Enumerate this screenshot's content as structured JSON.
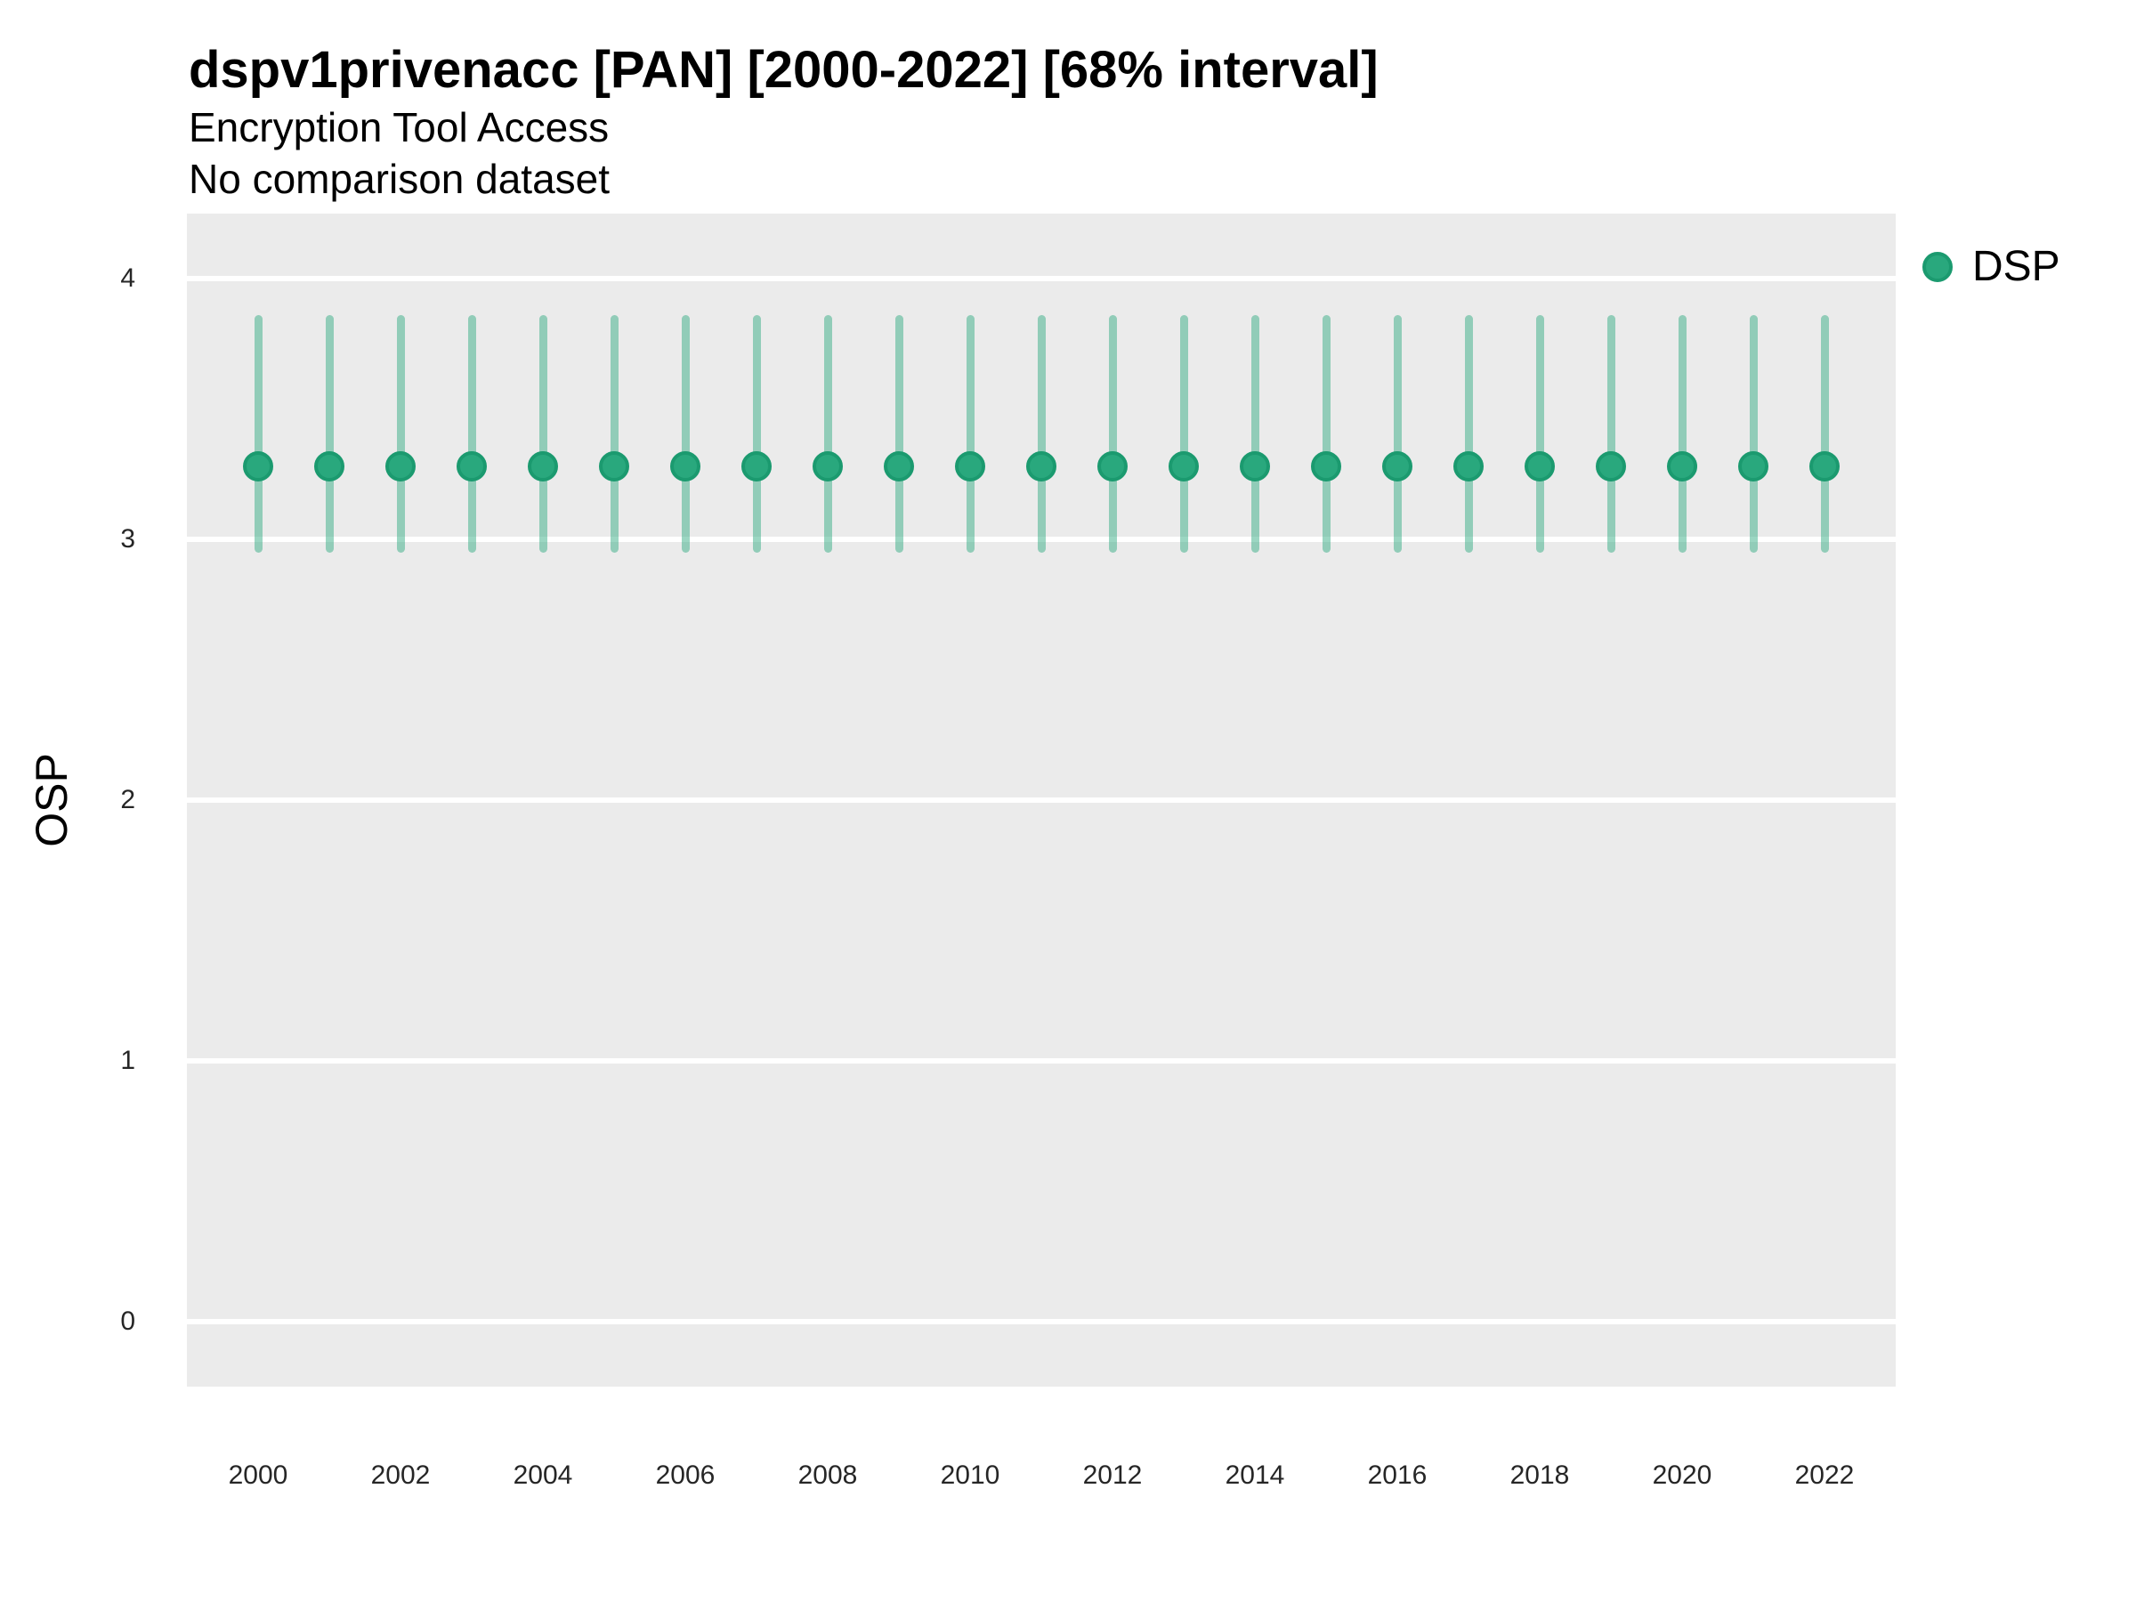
{
  "chart_data": {
    "type": "pointrange-scatter",
    "title": "dspv1privenacc [PAN] [2000-2022] [68% interval]",
    "subtitle": "Encryption Tool Access",
    "comparison_note": "No comparison dataset",
    "ylabel": "OSP",
    "xlabel": "",
    "xlim": [
      1999,
      2023
    ],
    "ylim": [
      -0.25,
      4.25
    ],
    "yticks": [
      0,
      1,
      2,
      3,
      4
    ],
    "xticks": [
      2000,
      2002,
      2004,
      2006,
      2008,
      2010,
      2012,
      2014,
      2016,
      2018,
      2020,
      2022
    ],
    "grid": "horizontal-major-only",
    "panel_bg": "#ebebeb",
    "gridline_color": "#ffffff",
    "legend": {
      "position": "top-right",
      "entries": [
        {
          "label": "DSP",
          "color": "#29a87d",
          "stroke_color": "#1b9a6f"
        }
      ]
    },
    "series": [
      {
        "name": "DSP",
        "point_color": "#29a87d",
        "point_stroke_color": "#1b9a6f",
        "interval_color": "rgba(45,170,127,0.48)",
        "points": [
          {
            "x": 2000,
            "y": 3.28,
            "lo": 2.95,
            "hi": 3.86
          },
          {
            "x": 2001,
            "y": 3.28,
            "lo": 2.95,
            "hi": 3.86
          },
          {
            "x": 2002,
            "y": 3.28,
            "lo": 2.95,
            "hi": 3.86
          },
          {
            "x": 2003,
            "y": 3.28,
            "lo": 2.95,
            "hi": 3.86
          },
          {
            "x": 2004,
            "y": 3.28,
            "lo": 2.95,
            "hi": 3.86
          },
          {
            "x": 2005,
            "y": 3.28,
            "lo": 2.95,
            "hi": 3.86
          },
          {
            "x": 2006,
            "y": 3.28,
            "lo": 2.95,
            "hi": 3.86
          },
          {
            "x": 2007,
            "y": 3.28,
            "lo": 2.95,
            "hi": 3.86
          },
          {
            "x": 2008,
            "y": 3.28,
            "lo": 2.95,
            "hi": 3.86
          },
          {
            "x": 2009,
            "y": 3.28,
            "lo": 2.95,
            "hi": 3.86
          },
          {
            "x": 2010,
            "y": 3.28,
            "lo": 2.95,
            "hi": 3.86
          },
          {
            "x": 2011,
            "y": 3.28,
            "lo": 2.95,
            "hi": 3.86
          },
          {
            "x": 2012,
            "y": 3.28,
            "lo": 2.95,
            "hi": 3.86
          },
          {
            "x": 2013,
            "y": 3.28,
            "lo": 2.95,
            "hi": 3.86
          },
          {
            "x": 2014,
            "y": 3.28,
            "lo": 2.95,
            "hi": 3.86
          },
          {
            "x": 2015,
            "y": 3.28,
            "lo": 2.95,
            "hi": 3.86
          },
          {
            "x": 2016,
            "y": 3.28,
            "lo": 2.95,
            "hi": 3.86
          },
          {
            "x": 2017,
            "y": 3.28,
            "lo": 2.95,
            "hi": 3.86
          },
          {
            "x": 2018,
            "y": 3.28,
            "lo": 2.95,
            "hi": 3.86
          },
          {
            "x": 2019,
            "y": 3.28,
            "lo": 2.95,
            "hi": 3.86
          },
          {
            "x": 2020,
            "y": 3.28,
            "lo": 2.95,
            "hi": 3.86
          },
          {
            "x": 2021,
            "y": 3.28,
            "lo": 2.95,
            "hi": 3.86
          },
          {
            "x": 2022,
            "y": 3.28,
            "lo": 2.95,
            "hi": 3.86
          }
        ]
      }
    ]
  }
}
